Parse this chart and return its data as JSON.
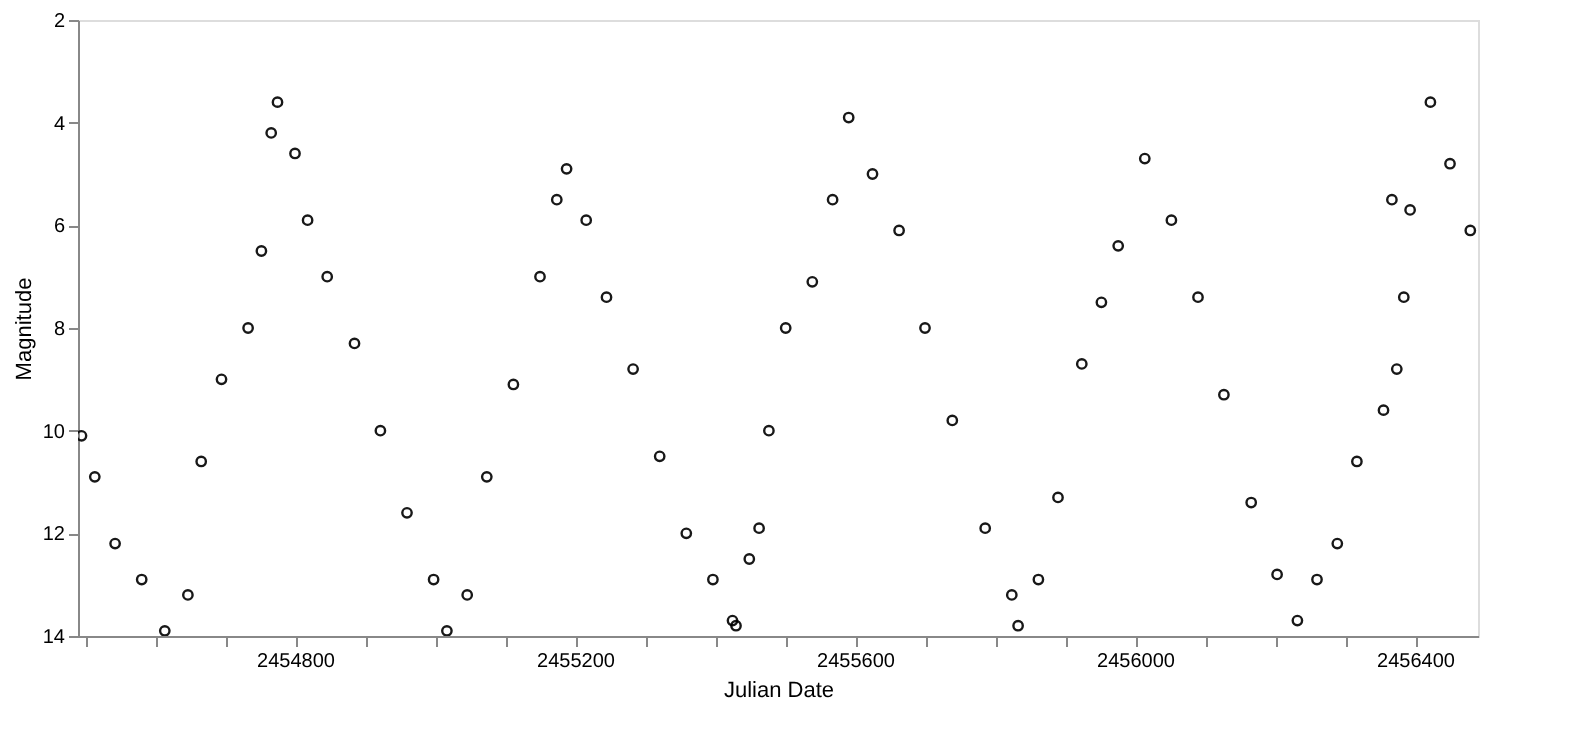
{
  "chart_data": {
    "type": "scatter",
    "xlabel": "Julian Date",
    "ylabel": "Magnitude",
    "marker": "circle",
    "grid": false,
    "legend": false,
    "xlim": [
      2454490,
      2456490
    ],
    "ylim": [
      14,
      2
    ],
    "xticks": [
      {
        "value": 2454500,
        "label": null
      },
      {
        "value": 2454600,
        "label": null
      },
      {
        "value": 2454700,
        "label": null
      },
      2454800,
      {
        "value": 2454900,
        "label": null
      },
      {
        "value": 2455000,
        "label": null
      },
      {
        "value": 2455100,
        "label": null
      },
      2455200,
      {
        "value": 2455300,
        "label": null
      },
      {
        "value": 2455400,
        "label": null
      },
      {
        "value": 2455500,
        "label": null
      },
      2455600,
      {
        "value": 2455700,
        "label": null
      },
      {
        "value": 2455800,
        "label": null
      },
      {
        "value": 2455900,
        "label": null
      },
      2456000,
      {
        "value": 2456100,
        "label": null
      },
      {
        "value": 2456200,
        "label": null
      },
      {
        "value": 2456300,
        "label": null
      },
      2456400
    ],
    "yticks": [
      2,
      4,
      6,
      8,
      10,
      12,
      14
    ],
    "series": [
      {
        "color": "#000000",
        "x": [
          2454495,
          2454514,
          2454543,
          2454581,
          2454614,
          2454647,
          2454666,
          2454695,
          2454733,
          2454752,
          2454766,
          2454775,
          2454800,
          2454818,
          2454846,
          2454885,
          2454922,
          2454960,
          2454998,
          2455017,
          2455046,
          2455074,
          2455112,
          2455150,
          2455174,
          2455188,
          2455216,
          2455245,
          2455283,
          2455321,
          2455359,
          2455397,
          2455425,
          2455430,
          2455449,
          2455463,
          2455477,
          2455501,
          2455539,
          2455568,
          2455591,
          2455625,
          2455663,
          2455700,
          2455739,
          2455786,
          2455824,
          2455833,
          2455862,
          2455890,
          2455924,
          2455952,
          2455976,
          2456014,
          2456052,
          2456090,
          2456127,
          2456166,
          2456203,
          2456232,
          2456260,
          2456289,
          2456317,
          2456355,
          2456367,
          2456374,
          2456384,
          2456393,
          2456422,
          2456450,
          2456479
        ],
        "values": [
          10.1,
          10.9,
          12.2,
          12.9,
          13.9,
          13.2,
          10.6,
          9.0,
          8.0,
          6.5,
          4.2,
          3.6,
          4.6,
          5.9,
          7.0,
          8.3,
          10.0,
          11.6,
          12.9,
          13.9,
          13.2,
          10.9,
          9.1,
          7.0,
          5.5,
          4.9,
          5.9,
          7.4,
          8.8,
          10.5,
          12.0,
          12.9,
          13.7,
          13.8,
          12.5,
          11.9,
          10.0,
          8.0,
          7.1,
          5.5,
          3.9,
          5.0,
          6.1,
          8.0,
          9.8,
          11.9,
          13.2,
          13.8,
          12.9,
          11.3,
          8.7,
          7.5,
          6.4,
          4.7,
          5.9,
          7.4,
          9.3,
          11.4,
          12.8,
          13.7,
          12.9,
          12.2,
          10.6,
          9.6,
          5.5,
          8.8,
          7.4,
          5.7,
          3.6,
          4.8,
          6.1
        ]
      }
    ]
  }
}
